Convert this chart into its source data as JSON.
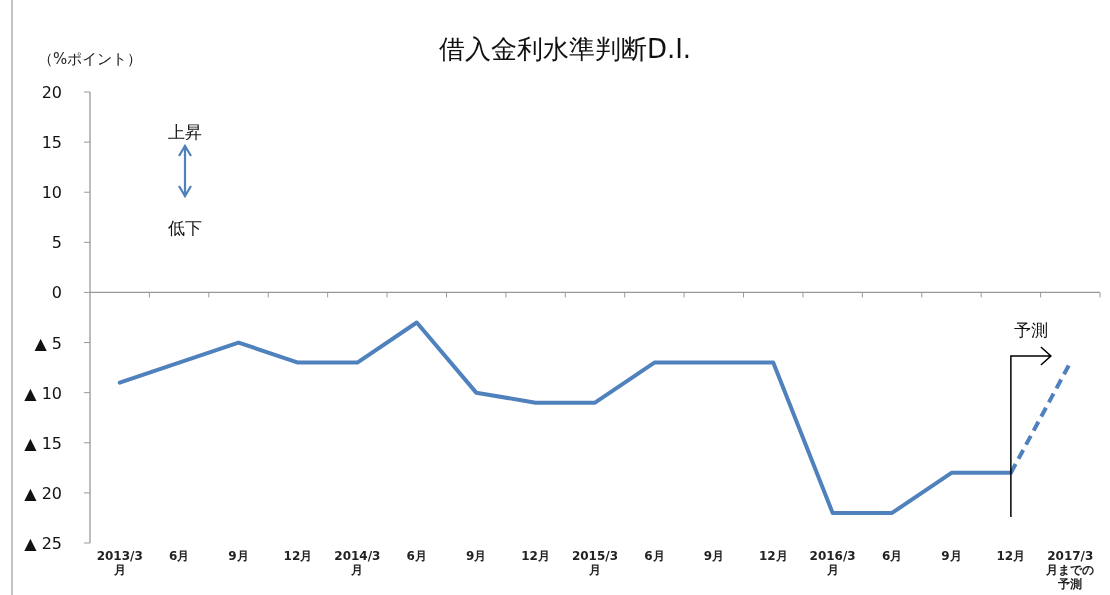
{
  "chart_data": {
    "type": "line",
    "title": "借入金利水準判断D.I.",
    "ylabel": "（%ポイント）",
    "categories": [
      "2013/3月",
      "6月",
      "9月",
      "12月",
      "2014/3月",
      "6月",
      "9月",
      "12月",
      "2015/3月",
      "6月",
      "9月",
      "12月",
      "2016/3月",
      "6月",
      "9月",
      "12月",
      "2017/3月までの予測"
    ],
    "series": [
      {
        "color": "#4f81bd",
        "line_style": "solid",
        "values": [
          -9,
          -7,
          -5,
          -7,
          -7,
          -3,
          -10,
          -11,
          -11,
          -7,
          -7,
          -7,
          -22,
          -22,
          -18,
          -18,
          null
        ]
      },
      {
        "color": "#4f81bd",
        "line_style": "dashed",
        "values": [
          null,
          null,
          null,
          null,
          null,
          null,
          null,
          null,
          null,
          null,
          null,
          null,
          null,
          null,
          null,
          -18,
          -7
        ]
      }
    ],
    "ylim": [
      -25,
      20
    ],
    "yticks": [
      20,
      15,
      10,
      5,
      0,
      {
        "value": -5,
        "label": "▲ 5"
      },
      {
        "value": -10,
        "label": "▲ 10"
      },
      {
        "value": -15,
        "label": "▲ 15"
      },
      {
        "value": -20,
        "label": "▲ 20"
      },
      {
        "value": -25,
        "label": "▲ 25"
      }
    ],
    "marker": "none",
    "annotations": [
      "上昇",
      "低下",
      "予測"
    ]
  }
}
